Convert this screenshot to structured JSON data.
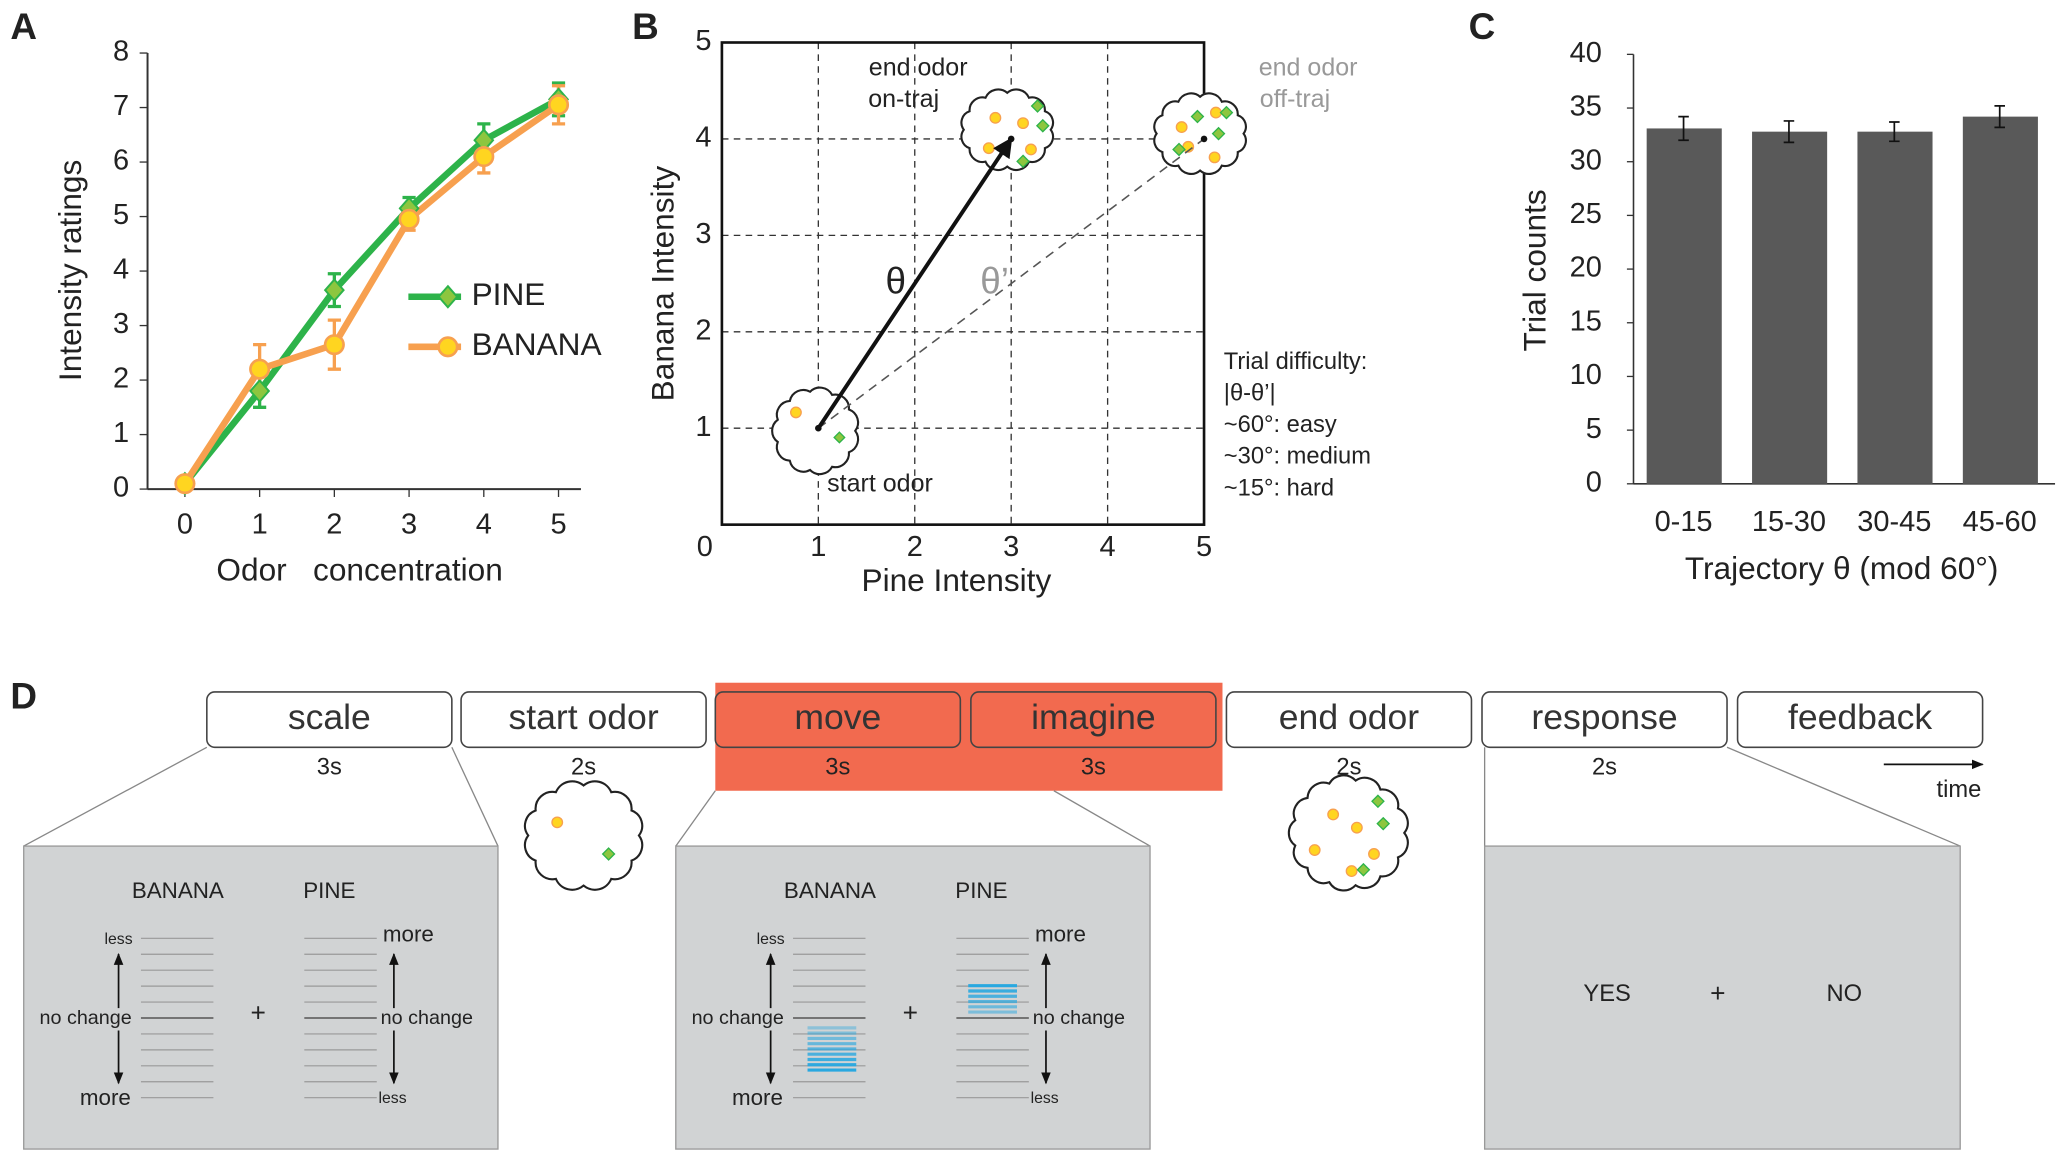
{
  "chart_data": [
    {
      "panel": "A",
      "type": "line",
      "xlabel": "Odor   concentration",
      "ylabel": "Intensity ratings",
      "x": [
        0,
        1,
        2,
        3,
        4,
        5
      ],
      "xlim": [
        -0.5,
        5.3
      ],
      "xticks": [
        0,
        1,
        2,
        3,
        4,
        5
      ],
      "ylim": [
        0,
        8
      ],
      "yticks": [
        0,
        1,
        2,
        3,
        4,
        5,
        6,
        7,
        8
      ],
      "legend": "center-right",
      "series": [
        {
          "name": "PINE",
          "color": "#2db34a",
          "marker": "diamond",
          "marker_color": "#8dc63f",
          "values": [
            0.1,
            1.8,
            3.65,
            5.15,
            6.4,
            7.15
          ],
          "errors": [
            0.05,
            0.3,
            0.3,
            0.2,
            0.3,
            0.3
          ]
        },
        {
          "name": "BANANA",
          "color": "#f7a04f",
          "marker": "circle",
          "marker_color": "#ffd520",
          "values": [
            0.1,
            2.2,
            2.65,
            4.95,
            6.1,
            7.05
          ],
          "errors": [
            0.05,
            0.45,
            0.45,
            0.2,
            0.3,
            0.35
          ]
        }
      ]
    },
    {
      "panel": "B",
      "type": "trajectory",
      "xlabel": "Pine Intensity",
      "ylabel": "Banana Intensity",
      "xlim": [
        0,
        5
      ],
      "ylim": [
        0,
        5
      ],
      "xticks": [
        0,
        1,
        2,
        3,
        4,
        5
      ],
      "yticks": [
        1,
        2,
        3,
        4,
        5
      ],
      "grid": true,
      "points": {
        "x": [
          1,
          3,
          5
        ],
        "y": [
          1,
          4,
          4
        ]
      },
      "annotations": {
        "on_traj": [
          "end odor",
          "on-traj"
        ],
        "off_traj": [
          "end odor",
          "off-traj"
        ],
        "start": "start odor",
        "theta": "θ",
        "theta_prime": "θ’",
        "difficulty": [
          "Trial difficulty:",
          "|θ-θ’|",
          "~60°: easy",
          "~30°: medium",
          "~15°: hard"
        ]
      }
    },
    {
      "panel": "C",
      "type": "bar",
      "xlabel": "Trajectory θ (mod 60°)",
      "ylabel": "Trial counts",
      "color": "#595959",
      "categories": [
        "0-15",
        "15-30",
        "30-45",
        "45-60"
      ],
      "values": [
        33.1,
        32.8,
        32.8,
        34.2
      ],
      "errors": [
        1.1,
        1.0,
        0.9,
        1.0
      ],
      "ylim": [
        0,
        40
      ],
      "yticks": [
        0,
        5,
        10,
        15,
        20,
        25,
        30,
        35,
        40
      ]
    }
  ],
  "timeline": {
    "panel": "D",
    "highlight_color": "#f26a4f",
    "time_label": "time",
    "stages": [
      {
        "label": "scale",
        "duration": "3s",
        "highlighted": false
      },
      {
        "label": "start odor",
        "duration": "2s",
        "highlighted": false
      },
      {
        "label": "move",
        "duration": "3s",
        "highlighted": true
      },
      {
        "label": "imagine",
        "duration": "3s",
        "highlighted": true
      },
      {
        "label": "end odor",
        "duration": "2s",
        "highlighted": false
      },
      {
        "label": "response",
        "duration": "2s",
        "highlighted": false
      },
      {
        "label": "feedback",
        "duration": null,
        "highlighted": false
      }
    ],
    "screens": {
      "scale": {
        "left_title": "BANANA",
        "right_title": "PINE",
        "left_top": "less",
        "left_bottom": "more",
        "right_top": "more",
        "right_bottom": "less",
        "middle": "no change",
        "fixation": "+"
      },
      "move": {
        "left_title": "BANANA",
        "right_title": "PINE",
        "left_top": "less",
        "left_bottom": "more",
        "right_top": "more",
        "right_bottom": "less",
        "middle": "no change",
        "fixation": "+"
      },
      "response": {
        "yes": "YES",
        "fixation": "+",
        "no": "NO"
      }
    }
  }
}
